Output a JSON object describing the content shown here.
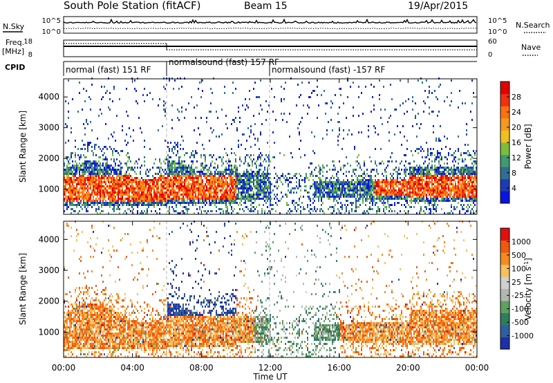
{
  "header": {
    "station_title": "South Pole Station (fitACF)",
    "beam": "Beam 15",
    "date": "19/Apr/2015"
  },
  "strips": {
    "nsky": {
      "label": "N.Sky",
      "left_ticks": [
        "10^5",
        "10^0"
      ]
    },
    "nsearch": {
      "label": "N.Search",
      "right_ticks": [
        "10^5",
        "10^0"
      ]
    },
    "freq": {
      "label_line1": "Freq.",
      "label_line2": "[MHz]",
      "left_ticks": [
        "18",
        "8"
      ]
    },
    "nave": {
      "label": "Nave",
      "right_ticks": [
        "60",
        "0"
      ]
    },
    "cpid": {
      "label": "CPID",
      "segments": [
        {
          "text": "normal (fast) 151 RF",
          "start_hour": 0
        },
        {
          "text": "normalsound (fast) 157 RF",
          "start_hour": 6
        },
        {
          "text": "normalsound (fast) -157 RF",
          "start_hour": 12
        }
      ]
    }
  },
  "chart_data": [
    {
      "type": "heatmap",
      "ylabel": "Slant Range [km]",
      "x_ticks": [
        "00:00",
        "04:00",
        "08:00",
        "12:00",
        "16:00",
        "20:00",
        "00:00"
      ],
      "x_range_hours": [
        0,
        24
      ],
      "y_ticks": [
        1000,
        2000,
        3000,
        4000
      ],
      "y_range_km": [
        180,
        4590
      ],
      "colorbar": {
        "label": "Power [dB]",
        "ticks": [
          "4",
          "8",
          "12",
          "16",
          "20",
          "24",
          "28"
        ],
        "colors": [
          "#0a14e0",
          "#1c3cb4",
          "#2f6f8f",
          "#3f9a70",
          "#7bbd3c",
          "#f0c020",
          "#f59a20",
          "#ff7010",
          "#f03010",
          "#e00000"
        ]
      }
    },
    {
      "type": "heatmap",
      "ylabel": "Slant Range [km]",
      "x_ticks": [
        "00:00",
        "04:00",
        "08:00",
        "12:00",
        "16:00",
        "20:00",
        "00:00"
      ],
      "x_range_hours": [
        0,
        24
      ],
      "y_ticks": [
        1000,
        2000,
        3000,
        4000
      ],
      "y_range_km": [
        180,
        4590
      ],
      "colorbar": {
        "label": "Velocity [m s^-1]",
        "ticks": [
          "1000",
          "500",
          "100",
          "25",
          "-25",
          "-100",
          "-500",
          "-1000"
        ],
        "colors": [
          "#1e2fa8",
          "#2f5fa0",
          "#2f7d5f",
          "#5fa060",
          "#b0b8b0",
          "#d0d0d0",
          "#f5c060",
          "#f58a20",
          "#f05a10",
          "#e01010"
        ]
      }
    }
  ],
  "x_axis": {
    "label": "Time UT"
  }
}
